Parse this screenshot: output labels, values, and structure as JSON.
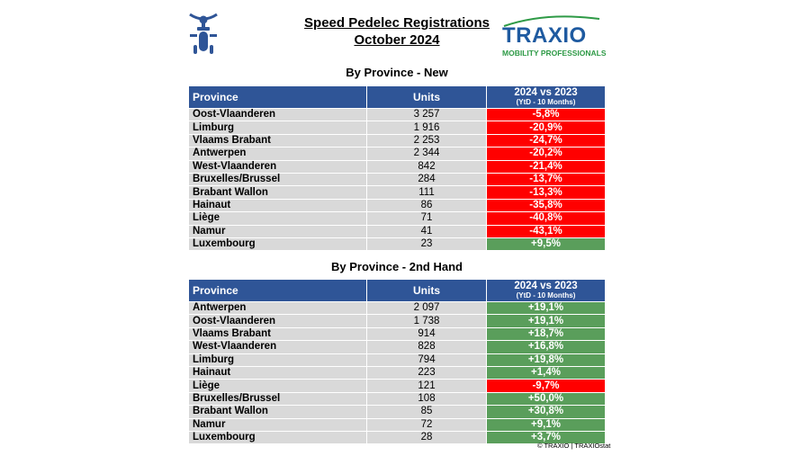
{
  "title_line1": "Speed Pedelec Registrations",
  "title_line2": "October 2024",
  "brand": {
    "name": "TRAXIO",
    "tagline": "MOBILITY PROFESSIONALS",
    "colors": {
      "blue": "#1e5aa0",
      "green": "#2e9a46"
    }
  },
  "logo_icon": "speed-pedelec-rider-icon",
  "colors": {
    "header": "#2f5597",
    "positive": "#5a9e5b",
    "negative": "#ff0000",
    "cell": "#d9d9d9"
  },
  "new_table": {
    "section_title": "By Province - New",
    "headers": {
      "province": "Province",
      "units": "Units",
      "yoy": "2024 vs 2023",
      "yoy_sub": "(YtD - 10 Months)"
    },
    "rows": [
      {
        "province": "Oost-Vlaanderen",
        "units": "3 257",
        "change": "-5,8%",
        "status": "neg"
      },
      {
        "province": "Limburg",
        "units": "1 916",
        "change": "-20,9%",
        "status": "neg"
      },
      {
        "province": "Vlaams Brabant",
        "units": "2 253",
        "change": "-24,7%",
        "status": "neg"
      },
      {
        "province": "Antwerpen",
        "units": "2 344",
        "change": "-20,2%",
        "status": "neg"
      },
      {
        "province": "West-Vlaanderen",
        "units": "842",
        "change": "-21,4%",
        "status": "neg"
      },
      {
        "province": "Bruxelles/Brussel",
        "units": "284",
        "change": "-13,7%",
        "status": "neg"
      },
      {
        "province": "Brabant Wallon",
        "units": "111",
        "change": "-13,3%",
        "status": "neg"
      },
      {
        "province": "Hainaut",
        "units": "86",
        "change": "-35,8%",
        "status": "neg"
      },
      {
        "province": "Liège",
        "units": "71",
        "change": "-40,8%",
        "status": "neg"
      },
      {
        "province": "Namur",
        "units": "41",
        "change": "-43,1%",
        "status": "neg"
      },
      {
        "province": "Luxembourg",
        "units": "23",
        "change": "+9,5%",
        "status": "pos"
      }
    ]
  },
  "used_table": {
    "section_title": "By Province - 2nd Hand",
    "headers": {
      "province": "Province",
      "units": "Units",
      "yoy": "2024 vs 2023",
      "yoy_sub": "(YtD - 10 Months)"
    },
    "rows": [
      {
        "province": "Antwerpen",
        "units": "2 097",
        "change": "+19,1%",
        "status": "pos"
      },
      {
        "province": "Oost-Vlaanderen",
        "units": "1 738",
        "change": "+19,1%",
        "status": "pos"
      },
      {
        "province": "Vlaams Brabant",
        "units": "914",
        "change": "+18,7%",
        "status": "pos"
      },
      {
        "province": "West-Vlaanderen",
        "units": "828",
        "change": "+16,8%",
        "status": "pos"
      },
      {
        "province": "Limburg",
        "units": "794",
        "change": "+19,8%",
        "status": "pos"
      },
      {
        "province": "Hainaut",
        "units": "223",
        "change": "+1,4%",
        "status": "pos"
      },
      {
        "province": "Liège",
        "units": "121",
        "change": "-9,7%",
        "status": "neg"
      },
      {
        "province": "Bruxelles/Brussel",
        "units": "108",
        "change": "+50,0%",
        "status": "pos"
      },
      {
        "province": "Brabant Wallon",
        "units": "85",
        "change": "+30,8%",
        "status": "pos"
      },
      {
        "province": "Namur",
        "units": "72",
        "change": "+9,1%",
        "status": "pos"
      },
      {
        "province": "Luxembourg",
        "units": "28",
        "change": "+3,7%",
        "status": "pos"
      }
    ]
  },
  "copyright": "© TRAXIO | TRAXIOstat"
}
